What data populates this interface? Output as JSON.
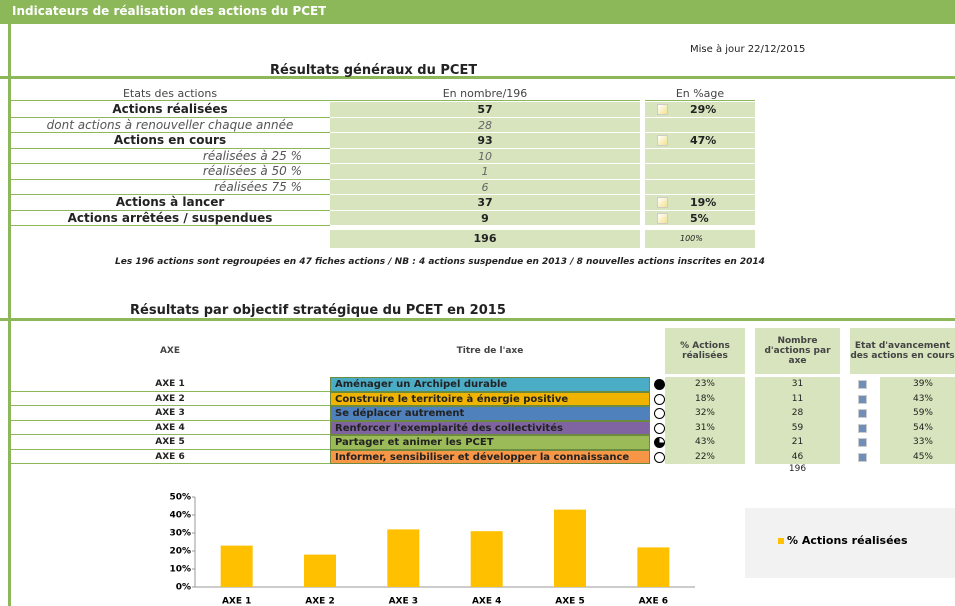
{
  "header": {
    "title": "Indicateurs de réalisation des actions du PCET",
    "updated": "Mise à jour 22/12/2015"
  },
  "general": {
    "title": "Résultats généraux du PCET",
    "columns": [
      "Etats des actions",
      "En nombre/196",
      "En %age"
    ],
    "rows": [
      {
        "label": "Actions réalisées",
        "count": "57",
        "percent": "29%",
        "style": "main"
      },
      {
        "label": "dont actions à renouveller chaque année",
        "count": "28",
        "style": "sub"
      },
      {
        "label": "Actions en cours",
        "count": "93",
        "percent": "47%",
        "style": "main"
      },
      {
        "label": "réalisées à 25 %",
        "count": "10",
        "style": "sub"
      },
      {
        "label": "réalisées à 50 %",
        "count": "1",
        "style": "sub"
      },
      {
        "label": "réalisées 75 %",
        "count": "6",
        "style": "sub"
      },
      {
        "label": "Actions à lancer",
        "count": "37",
        "percent": "19%",
        "style": "main"
      },
      {
        "label": "Actions arrêtées / suspendues",
        "count": "9",
        "percent": "5%",
        "style": "main"
      }
    ],
    "total": {
      "count": "196",
      "percent": "100%"
    },
    "note": "Les 196 actions sont regroupées en 47 fiches actions / NB : 4 actions suspendue en 2013 / 8 nouvelles actions inscrites en 2014"
  },
  "axes": {
    "title": "Résultats par objectif stratégique du PCET en 2015",
    "columns": [
      "AXE",
      "Titre de l'axe",
      "% Actions réalisées",
      "Nombre d'actions par axe",
      "Etat d'avancement des actions en cours"
    ],
    "rows": [
      {
        "axe": "AXE 1",
        "title": "Aménager un Archipel durable",
        "color": "#4bacc6",
        "indicator": "full",
        "percent": "23%",
        "count": "31",
        "progress": "39%"
      },
      {
        "axe": "AXE 2",
        "title": "Construire le territoire à énergie positive",
        "color": "#f0b400",
        "indicator": "empty",
        "percent": "18%",
        "count": "11",
        "progress": "43%"
      },
      {
        "axe": "AXE 3",
        "title": "Se déplacer autrement",
        "color": "#4f81bd",
        "indicator": "empty",
        "percent": "32%",
        "count": "28",
        "progress": "59%"
      },
      {
        "axe": "AXE 4",
        "title": "Renforcer l'exemplarité des collectivités",
        "color": "#8064a2",
        "indicator": "empty",
        "percent": "31%",
        "count": "59",
        "progress": "54%"
      },
      {
        "axe": "AXE 5",
        "title": "Partager et animer les PCET",
        "color": "#9bbb59",
        "indicator": "partial",
        "percent": "43%",
        "count": "21",
        "progress": "33%"
      },
      {
        "axe": "AXE 6",
        "title": "Informer, sensibiliser et développer la connaissance",
        "color": "#f79646",
        "indicator": "empty",
        "percent": "22%",
        "count": "46",
        "progress": "45%"
      }
    ],
    "total": "196"
  },
  "chart_data": {
    "type": "bar",
    "categories": [
      "AXE 1",
      "AXE 2",
      "AXE 3",
      "AXE 4",
      "AXE 5",
      "AXE 6"
    ],
    "series": [
      {
        "name": "% Actions réalisées",
        "color": "#ffc000",
        "values": [
          23,
          18,
          32,
          31,
          43,
          22
        ]
      }
    ],
    "ylim": [
      0,
      50
    ],
    "yticks": [
      {
        "value": 0,
        "label": "0%"
      },
      {
        "value": 10,
        "label": "10%"
      },
      {
        "value": 20,
        "label": "20%"
      },
      {
        "value": 30,
        "label": "30%"
      },
      {
        "value": 40,
        "label": "40%"
      },
      {
        "value": 50,
        "label": "50%"
      }
    ],
    "grid": false
  }
}
